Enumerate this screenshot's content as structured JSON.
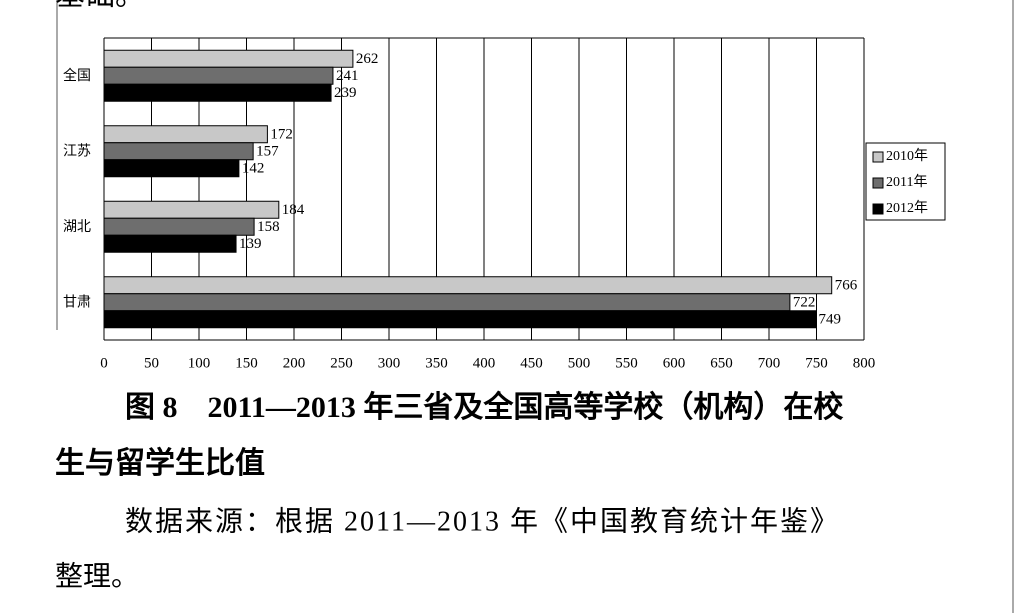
{
  "top_text": "基础。",
  "chart_data": {
    "type": "bar",
    "orientation": "horizontal",
    "categories": [
      "全国",
      "江苏",
      "湖北",
      "甘肃"
    ],
    "series": [
      {
        "name": "2010年",
        "color": "#c8c8c8",
        "values": [
          262,
          172,
          184,
          766
        ]
      },
      {
        "name": "2011年",
        "color": "#6e6e6e",
        "values": [
          241,
          157,
          158,
          722
        ]
      },
      {
        "name": "2012年",
        "color": "#000000",
        "values": [
          239,
          142,
          139,
          749
        ]
      }
    ],
    "xlim": [
      0,
      800
    ],
    "xticks": [
      0,
      50,
      100,
      150,
      200,
      250,
      300,
      350,
      400,
      450,
      500,
      550,
      600,
      650,
      700,
      750,
      800
    ],
    "grid": true,
    "legend": "right"
  },
  "caption_lines": [
    "图 8　2011—2013 年三省及全国高等学校（机构）在校",
    "生与留学生比值"
  ],
  "source_lines": [
    "数据来源：根据 2011—2013 年《中国教育统计年鉴》",
    "整理。"
  ]
}
